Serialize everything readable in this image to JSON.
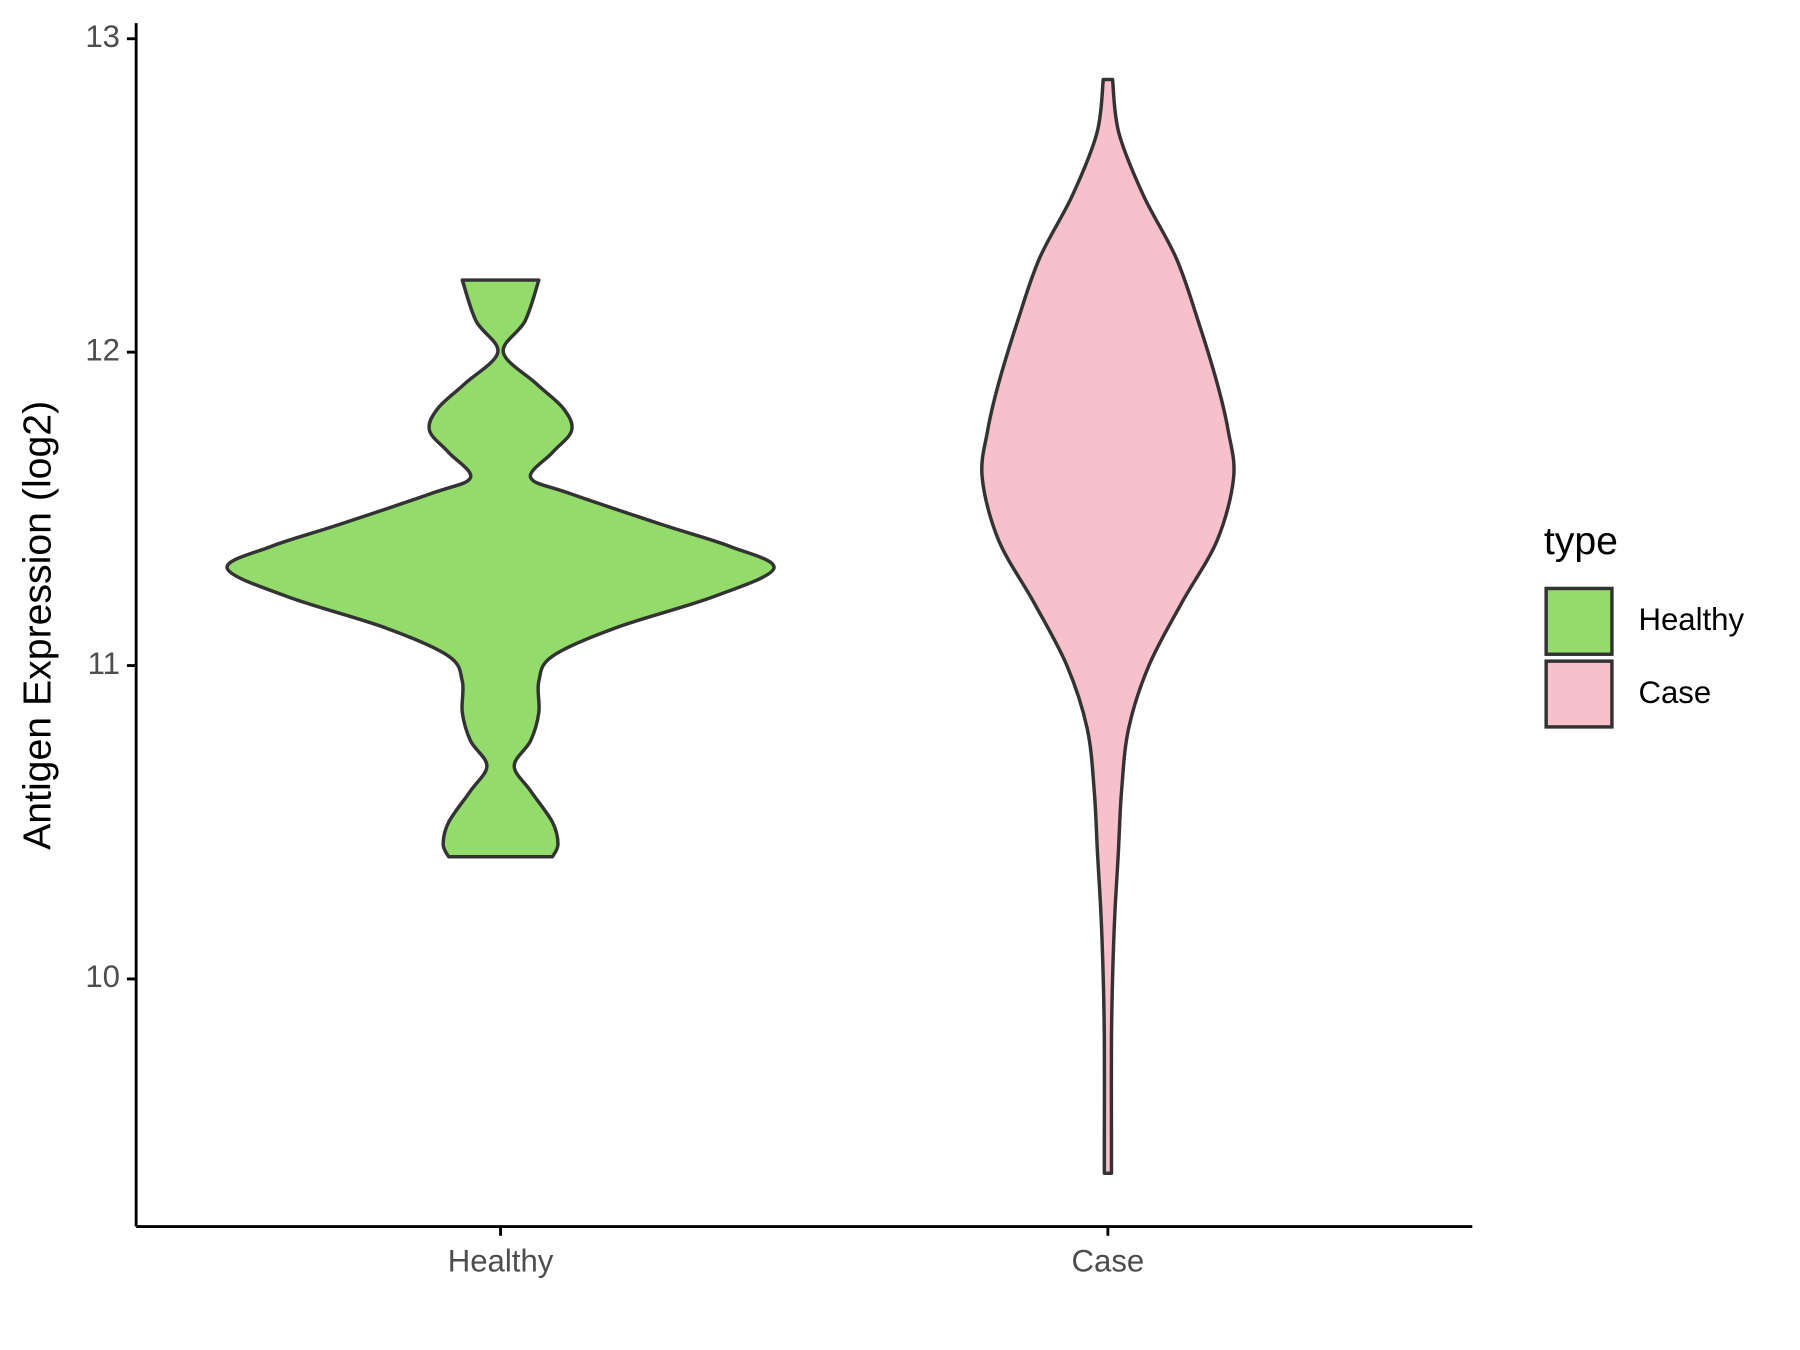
{
  "chart_data": {
    "type": "violin",
    "y_label": "Antigen Expression (log2)",
    "legend_title": "type",
    "categories": [
      "Healthy",
      "Case"
    ],
    "ylim": [
      9.21,
      13.05
    ],
    "yticks": [
      10,
      11,
      12,
      13
    ],
    "series": [
      {
        "name": "Healthy",
        "color": "#93dc6b",
        "y": [
          10.39,
          10.43,
          10.5,
          10.6,
          10.68,
          10.76,
          10.85,
          10.95,
          11.03,
          11.12,
          11.22,
          11.31,
          11.38,
          11.45,
          11.55,
          11.6,
          11.68,
          11.75,
          11.82,
          11.9,
          12.0,
          12.1,
          12.23
        ],
        "density": [
          0.19,
          0.21,
          0.19,
          0.11,
          0.05,
          0.11,
          0.14,
          0.14,
          0.19,
          0.42,
          0.78,
          1.0,
          0.84,
          0.59,
          0.25,
          0.11,
          0.19,
          0.26,
          0.23,
          0.13,
          0.01,
          0.09,
          0.14
        ]
      },
      {
        "name": "Case",
        "color": "#f8c0cb",
        "y": [
          9.38,
          9.5,
          9.8,
          10.0,
          10.2,
          10.4,
          10.6,
          10.8,
          11.0,
          11.2,
          11.4,
          11.6,
          11.75,
          11.9,
          12.1,
          12.3,
          12.5,
          12.7,
          12.87
        ],
        "density": [
          0.013,
          0.013,
          0.013,
          0.017,
          0.025,
          0.038,
          0.05,
          0.076,
          0.15,
          0.27,
          0.4,
          0.46,
          0.44,
          0.4,
          0.33,
          0.25,
          0.13,
          0.04,
          0.017
        ]
      }
    ],
    "legend_position": "right"
  }
}
